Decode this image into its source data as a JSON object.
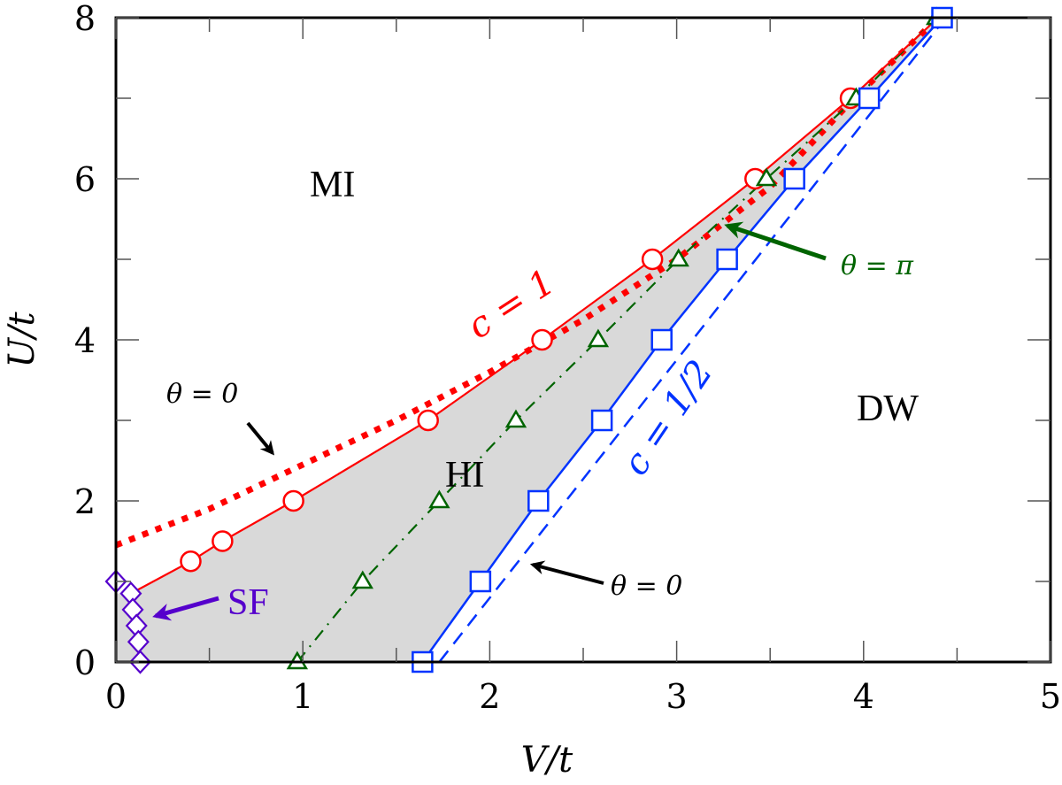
{
  "chart_data": {
    "type": "line",
    "xlabel": "V/t",
    "ylabel": "U/t",
    "xlim": [
      0,
      5
    ],
    "ylim": [
      0,
      8
    ],
    "xticks": [
      "0",
      "1",
      "2",
      "3",
      "4",
      "5"
    ],
    "yticks": [
      "0",
      "2",
      "4",
      "6",
      "8"
    ],
    "grid": false,
    "shaded_region_color": "#d9d9d9",
    "series": [
      {
        "name": "c = 1 (theta = pi, circles)",
        "color": "#ff0000",
        "marker": "circle",
        "line": [
          [
            0.08,
            0.85
          ],
          [
            0.4,
            1.25
          ],
          [
            0.57,
            1.5
          ],
          [
            0.95,
            2
          ],
          [
            1.67,
            3
          ],
          [
            2.28,
            4
          ],
          [
            2.87,
            5
          ],
          [
            3.42,
            6
          ],
          [
            3.93,
            7
          ],
          [
            4.4,
            8
          ]
        ],
        "points": [
          [
            0.4,
            1.25
          ],
          [
            0.57,
            1.5
          ],
          [
            0.95,
            2
          ],
          [
            1.67,
            3
          ],
          [
            2.28,
            4
          ],
          [
            2.87,
            5
          ],
          [
            3.42,
            6
          ],
          [
            3.93,
            7
          ]
        ]
      },
      {
        "name": "c = 1 (theta = 0, dotted)",
        "color": "#ff0000",
        "marker": "none",
        "style": "dotted",
        "line": [
          [
            0,
            1.45
          ],
          [
            0.5,
            1.9
          ],
          [
            1.0,
            2.45
          ],
          [
            1.5,
            3.0
          ],
          [
            2.0,
            3.6
          ],
          [
            2.5,
            4.25
          ],
          [
            3.0,
            5.0
          ],
          [
            3.5,
            5.9
          ],
          [
            3.95,
            7.0
          ],
          [
            4.4,
            8
          ]
        ]
      },
      {
        "name": "theta = pi (triangles)",
        "color": "#006400",
        "marker": "triangle",
        "style": "dashdot",
        "points": [
          [
            0.97,
            0
          ],
          [
            1.32,
            1
          ],
          [
            1.73,
            2
          ],
          [
            2.14,
            3
          ],
          [
            2.58,
            4
          ],
          [
            3.01,
            5
          ],
          [
            3.48,
            6
          ],
          [
            3.96,
            7
          ],
          [
            4.39,
            8
          ]
        ]
      },
      {
        "name": "c = 1/2 (squares)",
        "color": "#0033ff",
        "marker": "square",
        "points": [
          [
            1.64,
            0
          ],
          [
            1.95,
            1
          ],
          [
            2.26,
            2
          ],
          [
            2.6,
            3
          ],
          [
            2.92,
            4
          ],
          [
            3.27,
            5
          ],
          [
            3.63,
            6
          ],
          [
            4.03,
            7
          ],
          [
            4.42,
            8
          ]
        ]
      },
      {
        "name": "c = 1/2 (theta = 0, dashed)",
        "color": "#0033ff",
        "marker": "none",
        "style": "dashed",
        "line": [
          [
            1.73,
            0
          ],
          [
            4.44,
            8
          ]
        ]
      },
      {
        "name": "SF",
        "color": "#5500cc",
        "marker": "diamond",
        "points": [
          [
            0.0,
            1.0
          ],
          [
            0.08,
            0.85
          ],
          [
            0.09,
            0.65
          ],
          [
            0.11,
            0.45
          ],
          [
            0.12,
            0.25
          ],
          [
            0.13,
            0.0
          ]
        ]
      }
    ],
    "annotations": {
      "mi": "MI",
      "hi": "HI",
      "dw": "DW",
      "sf": "SF",
      "c1": "c = 1",
      "c12": "c = 1/2",
      "theta_pi": "θ = π",
      "theta0_left": "θ = 0",
      "theta0_right": "θ = 0"
    }
  }
}
